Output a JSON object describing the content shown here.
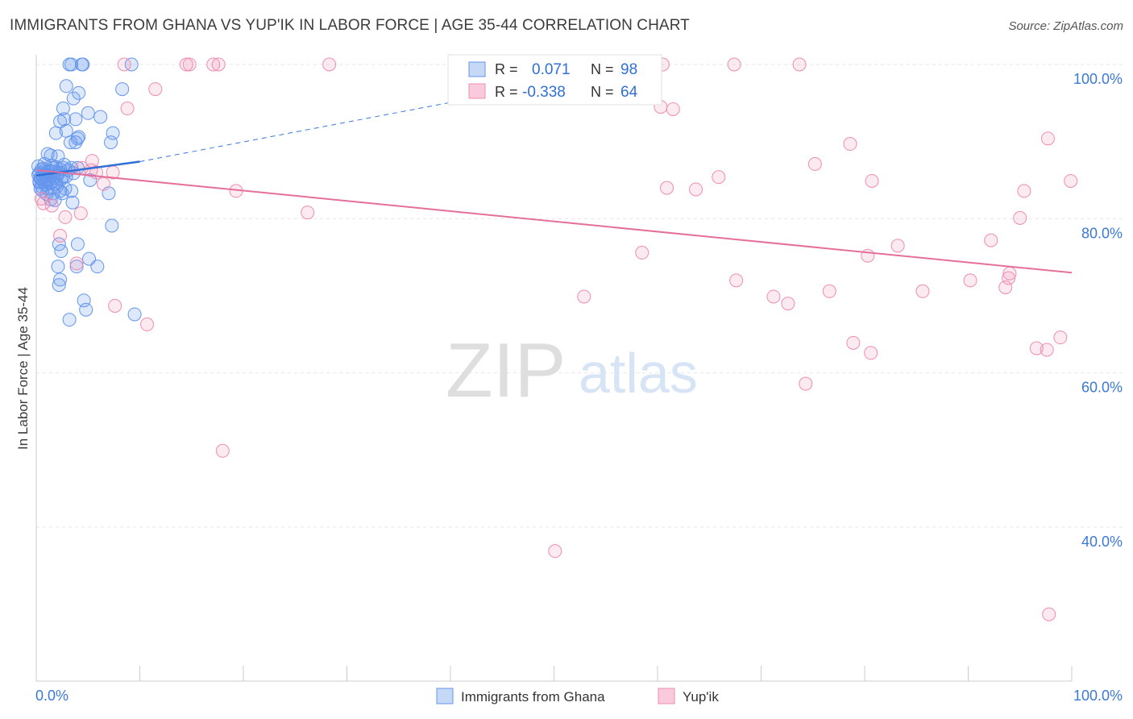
{
  "title": "IMMIGRANTS FROM GHANA VS YUP'IK IN LABOR FORCE | AGE 35-44 CORRELATION CHART",
  "source": "Source: ZipAtlas.com",
  "watermark": {
    "zip": "ZIP",
    "atlas": "atlas"
  },
  "legend_box": {
    "rows": [
      {
        "r_label": "R =",
        "r_value": "0.071",
        "n_label": "N =",
        "n_value": "98",
        "color": "#6495ED"
      },
      {
        "r_label": "R =",
        "r_value": "-0.338",
        "n_label": "N =",
        "n_value": "64",
        "color": "#F08CB0"
      }
    ]
  },
  "chart_data": {
    "type": "scatter",
    "title": "IMMIGRANTS FROM GHANA VS YUP'IK IN LABOR FORCE | AGE 35-44 CORRELATION CHART",
    "xlabel": "",
    "ylabel": "In Labor Force | Age 35-44",
    "x_tick_labels": [
      "0.0%",
      "100.0%"
    ],
    "y_tick_labels": [
      "40.0%",
      "60.0%",
      "80.0%",
      "100.0%"
    ],
    "y_ticks": [
      40,
      60,
      80,
      100
    ],
    "xlim": [
      0,
      100
    ],
    "ylim": [
      19,
      102
    ],
    "grid": true,
    "legend_position": "bottom-center",
    "series": [
      {
        "name": "Immigrants from Ghana",
        "color": "#6495ED",
        "trend": {
          "x": [
            0,
            10
          ],
          "y": [
            85.6,
            87.4
          ],
          "dashed_to": [
            60,
            100.2
          ]
        },
        "points": [
          [
            3.2,
            100
          ],
          [
            3.4,
            100
          ],
          [
            4.4,
            100
          ],
          [
            4.5,
            100
          ],
          [
            9.2,
            100
          ],
          [
            2.9,
            97.2
          ],
          [
            8.3,
            96.8
          ],
          [
            4.1,
            96.3
          ],
          [
            3.6,
            95.6
          ],
          [
            2.6,
            94.3
          ],
          [
            5.0,
            93.7
          ],
          [
            6.2,
            93.2
          ],
          [
            2.7,
            92.9
          ],
          [
            3.8,
            92.9
          ],
          [
            2.3,
            92.6
          ],
          [
            2.9,
            91.4
          ],
          [
            1.9,
            91.1
          ],
          [
            7.4,
            91.1
          ],
          [
            4.1,
            90.6
          ],
          [
            4.0,
            90.4
          ],
          [
            3.3,
            89.9
          ],
          [
            7.2,
            89.9
          ],
          [
            3.8,
            89.9
          ],
          [
            1.1,
            88.4
          ],
          [
            1.4,
            88.2
          ],
          [
            2.1,
            88.1
          ],
          [
            0.8,
            87.1
          ],
          [
            1.6,
            86.6
          ],
          [
            2.6,
            86.6
          ],
          [
            3.4,
            86.6
          ],
          [
            4.0,
            86.6
          ],
          [
            0.5,
            86.4
          ],
          [
            1.1,
            86.1
          ],
          [
            1.8,
            86.1
          ],
          [
            2.2,
            86.0
          ],
          [
            3.6,
            85.9
          ],
          [
            0.6,
            85.6
          ],
          [
            1.0,
            85.6
          ],
          [
            1.4,
            85.6
          ],
          [
            2.0,
            85.5
          ],
          [
            2.9,
            85.5
          ],
          [
            0.4,
            85.3
          ],
          [
            1.7,
            85.3
          ],
          [
            2.4,
            85.1
          ],
          [
            5.2,
            85.0
          ],
          [
            0.3,
            84.9
          ],
          [
            0.7,
            84.8
          ],
          [
            1.3,
            84.6
          ],
          [
            1.9,
            84.5
          ],
          [
            0.9,
            84.4
          ],
          [
            2.0,
            84.2
          ],
          [
            0.4,
            83.9
          ],
          [
            1.1,
            83.9
          ],
          [
            2.8,
            83.9
          ],
          [
            3.4,
            83.6
          ],
          [
            0.6,
            83.6
          ],
          [
            2.3,
            83.6
          ],
          [
            1.0,
            83.2
          ],
          [
            1.6,
            83.3
          ],
          [
            2.5,
            83.3
          ],
          [
            7.0,
            83.3
          ],
          [
            1.4,
            82.5
          ],
          [
            3.5,
            82.1
          ],
          [
            1.8,
            82.4
          ],
          [
            7.3,
            79.1
          ],
          [
            2.2,
            76.7
          ],
          [
            4.0,
            76.7
          ],
          [
            2.4,
            75.8
          ],
          [
            5.1,
            74.8
          ],
          [
            2.1,
            73.8
          ],
          [
            3.9,
            73.8
          ],
          [
            5.9,
            73.8
          ],
          [
            2.3,
            72.1
          ],
          [
            2.2,
            71.4
          ],
          [
            4.6,
            69.4
          ],
          [
            4.8,
            68.2
          ],
          [
            9.5,
            67.6
          ],
          [
            3.2,
            66.9
          ],
          [
            0.3,
            85.9
          ],
          [
            0.2,
            86.8
          ],
          [
            1.5,
            86.9
          ],
          [
            2.7,
            87.0
          ],
          [
            3.1,
            86.3
          ],
          [
            0.8,
            86.2
          ],
          [
            1.2,
            85.1
          ],
          [
            2.1,
            85.9
          ],
          [
            0.5,
            84.2
          ],
          [
            1.0,
            85.0
          ],
          [
            0.7,
            86.5
          ],
          [
            1.9,
            86.7
          ],
          [
            2.6,
            85.4
          ],
          [
            0.3,
            84.7
          ],
          [
            1.3,
            86.2
          ],
          [
            0.9,
            85.7
          ],
          [
            0.4,
            85.2
          ],
          [
            1.6,
            84.8
          ],
          [
            2.3,
            86.4
          ],
          [
            0.2,
            85.7
          ]
        ]
      },
      {
        "name": "Yup'ik",
        "color": "#F08CB0",
        "trend": {
          "x": [
            0,
            100
          ],
          "y": [
            86.3,
            73.0
          ]
        },
        "points": [
          [
            8.5,
            100
          ],
          [
            14.5,
            100
          ],
          [
            14.8,
            100
          ],
          [
            17.1,
            100
          ],
          [
            17.6,
            100
          ],
          [
            28.3,
            100
          ],
          [
            41.2,
            100
          ],
          [
            60.5,
            100
          ],
          [
            67.4,
            100
          ],
          [
            73.7,
            100
          ],
          [
            11.5,
            96.8
          ],
          [
            8.8,
            94.3
          ],
          [
            60.3,
            94.5
          ],
          [
            61.5,
            94.2
          ],
          [
            97.7,
            90.4
          ],
          [
            78.6,
            89.7
          ],
          [
            5.4,
            87.5
          ],
          [
            75.2,
            87.1
          ],
          [
            5.3,
            86.3
          ],
          [
            7.4,
            86.0
          ],
          [
            5.8,
            86.0
          ],
          [
            65.9,
            85.4
          ],
          [
            80.7,
            84.9
          ],
          [
            99.9,
            84.9
          ],
          [
            6.5,
            84.5
          ],
          [
            60.9,
            84.0
          ],
          [
            63.7,
            83.8
          ],
          [
            95.4,
            83.6
          ],
          [
            19.3,
            83.6
          ],
          [
            0.7,
            82.0
          ],
          [
            1.5,
            81.7
          ],
          [
            4.3,
            80.7
          ],
          [
            26.2,
            80.8
          ],
          [
            2.8,
            80.2
          ],
          [
            95.0,
            80.1
          ],
          [
            92.2,
            77.2
          ],
          [
            2.3,
            77.8
          ],
          [
            83.2,
            76.5
          ],
          [
            58.5,
            75.6
          ],
          [
            80.3,
            75.2
          ],
          [
            3.9,
            74.2
          ],
          [
            90.2,
            72.0
          ],
          [
            67.6,
            72.0
          ],
          [
            94.0,
            72.9
          ],
          [
            93.9,
            72.3
          ],
          [
            76.6,
            70.6
          ],
          [
            93.6,
            71.1
          ],
          [
            85.6,
            70.6
          ],
          [
            52.9,
            69.9
          ],
          [
            71.2,
            69.9
          ],
          [
            72.6,
            69.0
          ],
          [
            7.6,
            68.7
          ],
          [
            10.7,
            66.3
          ],
          [
            78.9,
            63.9
          ],
          [
            80.6,
            62.6
          ],
          [
            96.6,
            63.2
          ],
          [
            97.6,
            63.0
          ],
          [
            98.9,
            64.6
          ],
          [
            74.3,
            58.6
          ],
          [
            18.0,
            49.9
          ],
          [
            50.1,
            36.9
          ],
          [
            97.8,
            28.7
          ],
          [
            0.5,
            82.6
          ],
          [
            4.4,
            86.6
          ]
        ]
      }
    ]
  },
  "legend": {
    "items": [
      {
        "label": "Immigrants from Ghana",
        "color": "#6495ED"
      },
      {
        "label": "Yup'ik",
        "color": "#F08CB0"
      }
    ]
  }
}
